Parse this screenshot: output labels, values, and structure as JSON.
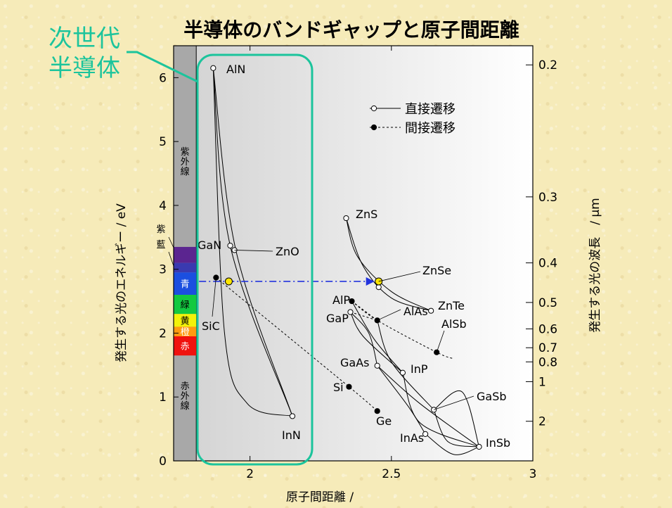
{
  "chart_data": {
    "type": "scatter",
    "title": "半導体のバンドギャップと原子間距離",
    "xlabel": "原子間距離 /",
    "ylabel": "発生する光のエネルギー / eV",
    "y2label": "発生する光の波長　/ μm",
    "xlim": [
      1.73,
      3.0
    ],
    "ylim": [
      0,
      6.5
    ],
    "xticks": [
      {
        "v": 2,
        "label": "2"
      },
      {
        "v": 2.5,
        "label": "2.5"
      },
      {
        "v": 3,
        "label": "3"
      }
    ],
    "yticks": [
      {
        "v": 0,
        "label": "0"
      },
      {
        "v": 1,
        "label": "1"
      },
      {
        "v": 2,
        "label": "2"
      },
      {
        "v": 3,
        "label": "3"
      },
      {
        "v": 4,
        "label": "4"
      },
      {
        "v": 5,
        "label": "5"
      },
      {
        "v": 6,
        "label": "6"
      }
    ],
    "y2ticks": [
      {
        "um": 0.2,
        "label": "0.2"
      },
      {
        "um": 0.3,
        "label": "0.3"
      },
      {
        "um": 0.4,
        "label": "0.4"
      },
      {
        "um": 0.5,
        "label": "0.5"
      },
      {
        "um": 0.6,
        "label": "0.6"
      },
      {
        "um": 0.7,
        "label": "0.7"
      },
      {
        "um": 0.8,
        "label": "0.8"
      },
      {
        "um": 1,
        "label": "1"
      },
      {
        "um": 2,
        "label": "2"
      }
    ],
    "legend": {
      "position": "top-right",
      "direct": "直接遷移",
      "indirect": "間接遷移"
    },
    "points": [
      {
        "name": "AlN",
        "x": 1.87,
        "y": 6.15,
        "transition": "direct"
      },
      {
        "name": "GaN",
        "x": 1.93,
        "y": 3.37,
        "transition": "direct"
      },
      {
        "name": "ZnO",
        "x": 1.945,
        "y": 3.3,
        "transition": "direct"
      },
      {
        "name": "InN",
        "x": 2.15,
        "y": 0.7,
        "transition": "direct"
      },
      {
        "name": "SiC",
        "x": 1.88,
        "y": 2.87,
        "transition": "indirect"
      },
      {
        "name": "ZnS",
        "x": 2.34,
        "y": 3.8,
        "transition": "direct"
      },
      {
        "name": "ZnSe",
        "x": 2.455,
        "y": 2.72,
        "transition": "direct"
      },
      {
        "name": "ZnTe",
        "x": 2.64,
        "y": 2.35,
        "transition": "direct"
      },
      {
        "name": "AlP",
        "x": 2.36,
        "y": 2.5,
        "transition": "indirect"
      },
      {
        "name": "GaP",
        "x": 2.355,
        "y": 2.33,
        "transition": "direct"
      },
      {
        "name": "AlAs",
        "x": 2.45,
        "y": 2.2,
        "transition": "indirect"
      },
      {
        "name": "AlSb",
        "x": 2.66,
        "y": 1.7,
        "transition": "indirect"
      },
      {
        "name": "GaAs",
        "x": 2.45,
        "y": 1.49,
        "transition": "direct"
      },
      {
        "name": "InP",
        "x": 2.54,
        "y": 1.38,
        "transition": "direct"
      },
      {
        "name": "Si",
        "x": 2.35,
        "y": 1.16,
        "transition": "indirect"
      },
      {
        "name": "Ge",
        "x": 2.45,
        "y": 0.78,
        "transition": "indirect"
      },
      {
        "name": "GaSb",
        "x": 2.65,
        "y": 0.8,
        "transition": "direct"
      },
      {
        "name": "InAs",
        "x": 2.62,
        "y": 0.42,
        "transition": "direct"
      },
      {
        "name": "InSb",
        "x": 2.81,
        "y": 0.22,
        "transition": "direct"
      }
    ],
    "highlighted_points": [
      {
        "x": 1.925,
        "y": 2.81
      },
      {
        "x": 2.455,
        "y": 2.81
      }
    ],
    "curves": [
      {
        "dashed": false,
        "pts": [
          [
            1.87,
            6.15
          ],
          [
            1.95,
            3.3
          ],
          [
            2.15,
            0.7
          ]
        ]
      },
      {
        "dashed": false,
        "pts": [
          [
            1.87,
            6.15
          ],
          [
            1.93,
            3.37
          ],
          [
            2.15,
            0.7
          ]
        ]
      },
      {
        "dashed": false,
        "pts": [
          [
            1.87,
            6.15
          ],
          [
            1.91,
            2.0
          ],
          [
            1.99,
            0.9
          ],
          [
            2.15,
            0.7
          ]
        ]
      },
      {
        "dashed": false,
        "pts": [
          [
            2.34,
            3.8
          ],
          [
            2.4,
            3.05
          ],
          [
            2.5,
            2.55
          ],
          [
            2.64,
            2.35
          ]
        ]
      },
      {
        "dashed": false,
        "pts": [
          [
            2.34,
            3.8
          ],
          [
            2.38,
            3.2
          ],
          [
            2.5,
            2.65
          ],
          [
            2.64,
            2.35
          ]
        ]
      },
      {
        "dashed": false,
        "pts": [
          [
            2.355,
            2.33
          ],
          [
            2.42,
            2.0
          ],
          [
            2.45,
            1.49
          ]
        ]
      },
      {
        "dashed": false,
        "pts": [
          [
            2.355,
            2.33
          ],
          [
            2.4,
            1.95
          ],
          [
            2.54,
            1.38
          ]
        ]
      },
      {
        "dashed": false,
        "pts": [
          [
            2.36,
            2.5
          ],
          [
            2.44,
            1.9
          ],
          [
            2.54,
            1.38
          ]
        ]
      },
      {
        "dashed": false,
        "pts": [
          [
            2.45,
            1.49
          ],
          [
            2.56,
            0.85
          ],
          [
            2.62,
            0.42
          ]
        ]
      },
      {
        "dashed": false,
        "pts": [
          [
            2.45,
            1.49
          ],
          [
            2.6,
            0.9
          ],
          [
            2.81,
            0.22
          ]
        ]
      },
      {
        "dashed": false,
        "pts": [
          [
            2.54,
            1.38
          ],
          [
            2.6,
            0.6
          ],
          [
            2.81,
            0.22
          ]
        ]
      },
      {
        "dashed": false,
        "pts": [
          [
            2.62,
            0.42
          ],
          [
            2.72,
            0.1
          ],
          [
            2.81,
            0.22
          ]
        ]
      },
      {
        "dashed": false,
        "pts": [
          [
            2.65,
            0.8
          ],
          [
            2.7,
            0.3
          ],
          [
            2.81,
            0.22
          ]
        ]
      },
      {
        "dashed": false,
        "pts": [
          [
            2.65,
            0.8
          ],
          [
            2.75,
            1.08
          ],
          [
            2.81,
            0.22
          ]
        ]
      },
      {
        "dashed": false,
        "pts": [
          [
            2.45,
            2.2
          ],
          [
            2.5,
            1.55
          ],
          [
            2.65,
            0.8
          ]
        ]
      },
      {
        "dashed": true,
        "pts": [
          [
            1.88,
            2.87
          ],
          [
            2.35,
            1.16
          ],
          [
            2.45,
            0.78
          ]
        ]
      },
      {
        "dashed": true,
        "pts": [
          [
            2.36,
            2.5
          ],
          [
            2.45,
            2.2
          ],
          [
            2.66,
            1.7
          ],
          [
            2.72,
            1.6
          ]
        ]
      },
      {
        "dashed": true,
        "pts": [
          [
            2.355,
            2.33
          ],
          [
            2.45,
            2.2
          ]
        ]
      },
      {
        "dashed": true,
        "pts": [
          [
            2.36,
            2.5
          ],
          [
            2.45,
            2.2
          ]
        ]
      }
    ],
    "arrow": {
      "from": [
        1.82,
        2.81
      ],
      "to": [
        2.44,
        2.81
      ],
      "color": "#2233dd"
    },
    "bands": {
      "uv_label": [
        "紫",
        "外",
        "線"
      ],
      "ir_label": [
        "赤",
        "外",
        "線"
      ],
      "spectrum": [
        {
          "label": "紫",
          "y0": 3.1,
          "y1": 3.35,
          "color": "#5b2590"
        },
        {
          "label": "藍",
          "y0": 2.95,
          "y1": 3.1,
          "color": "#3a3ab0"
        },
        {
          "label": "青",
          "y0": 2.6,
          "y1": 2.95,
          "color": "#1b4fe0"
        },
        {
          "label": "緑",
          "y0": 2.3,
          "y1": 2.6,
          "color": "#13c940"
        },
        {
          "label": "黄",
          "y0": 2.1,
          "y1": 2.3,
          "color": "#f2f20a"
        },
        {
          "label": "橙",
          "y0": 1.95,
          "y1": 2.1,
          "color": "#ff9a10"
        },
        {
          "label": "赤",
          "y0": 1.65,
          "y1": 1.95,
          "color": "#f0120e"
        }
      ]
    },
    "annotation": {
      "lines": [
        "次世代",
        "半導体"
      ],
      "color": "#1cc49c"
    }
  }
}
